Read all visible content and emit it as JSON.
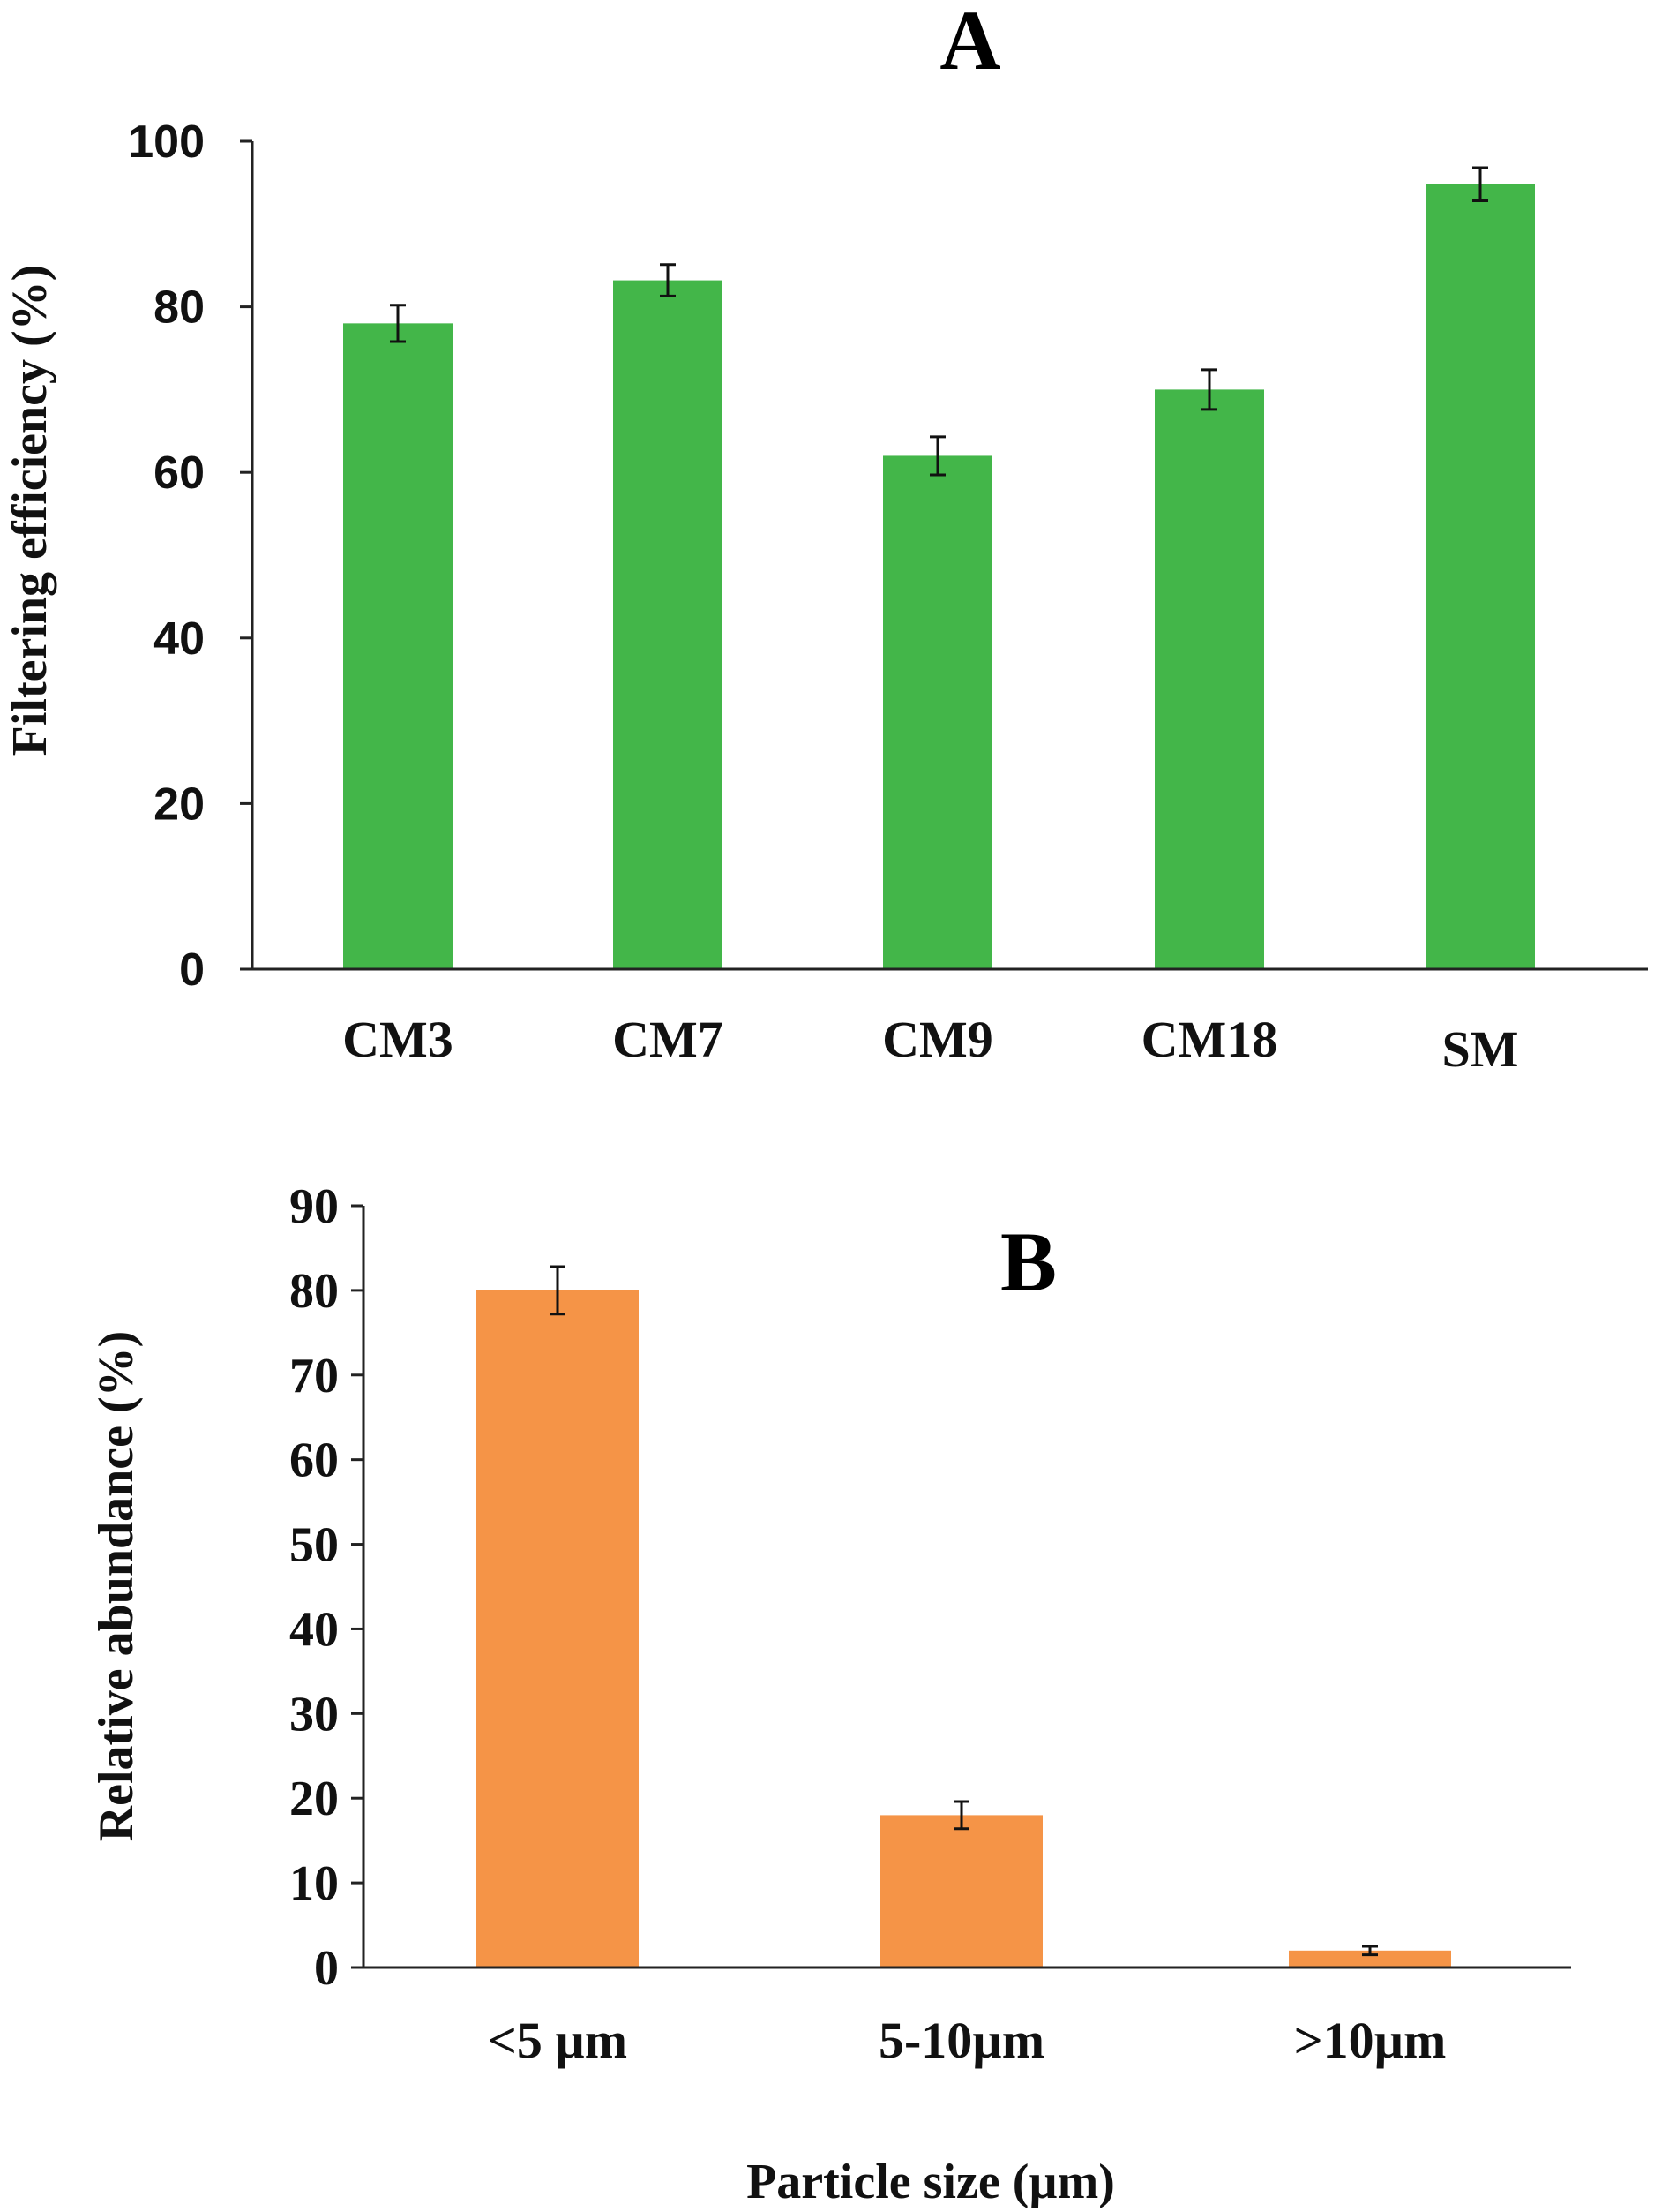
{
  "chart_data": [
    {
      "panel": "A",
      "type": "bar",
      "title": "",
      "xlabel": "",
      "ylabel": "Filtering efficiency (%)",
      "categories": [
        "CM3",
        "CM7",
        "CM9",
        "CM18",
        "SM"
      ],
      "values": [
        78,
        83.2,
        62,
        70,
        94.8
      ],
      "errors": [
        2.2,
        1.9,
        2.3,
        2.4,
        2.0
      ],
      "ylim": [
        0,
        100
      ],
      "yticks": [
        "0",
        "20",
        "40",
        "60",
        "80",
        "100"
      ],
      "grid": false,
      "color": "#43b649"
    },
    {
      "panel": "B",
      "type": "bar",
      "title": "",
      "xlabel": "Particle size (µm)",
      "ylabel": "Relative abundance (%)",
      "categories": [
        "<5 µm",
        "5-10µm",
        ">10µm"
      ],
      "values": [
        80,
        18,
        2
      ],
      "errors": [
        2.8,
        1.6,
        0.5
      ],
      "ylim": [
        0,
        90
      ],
      "yticks": [
        "0",
        "10",
        "20",
        "30",
        "40",
        "50",
        "60",
        "70",
        "80",
        "90"
      ],
      "grid": false,
      "color": "#f59447"
    }
  ]
}
